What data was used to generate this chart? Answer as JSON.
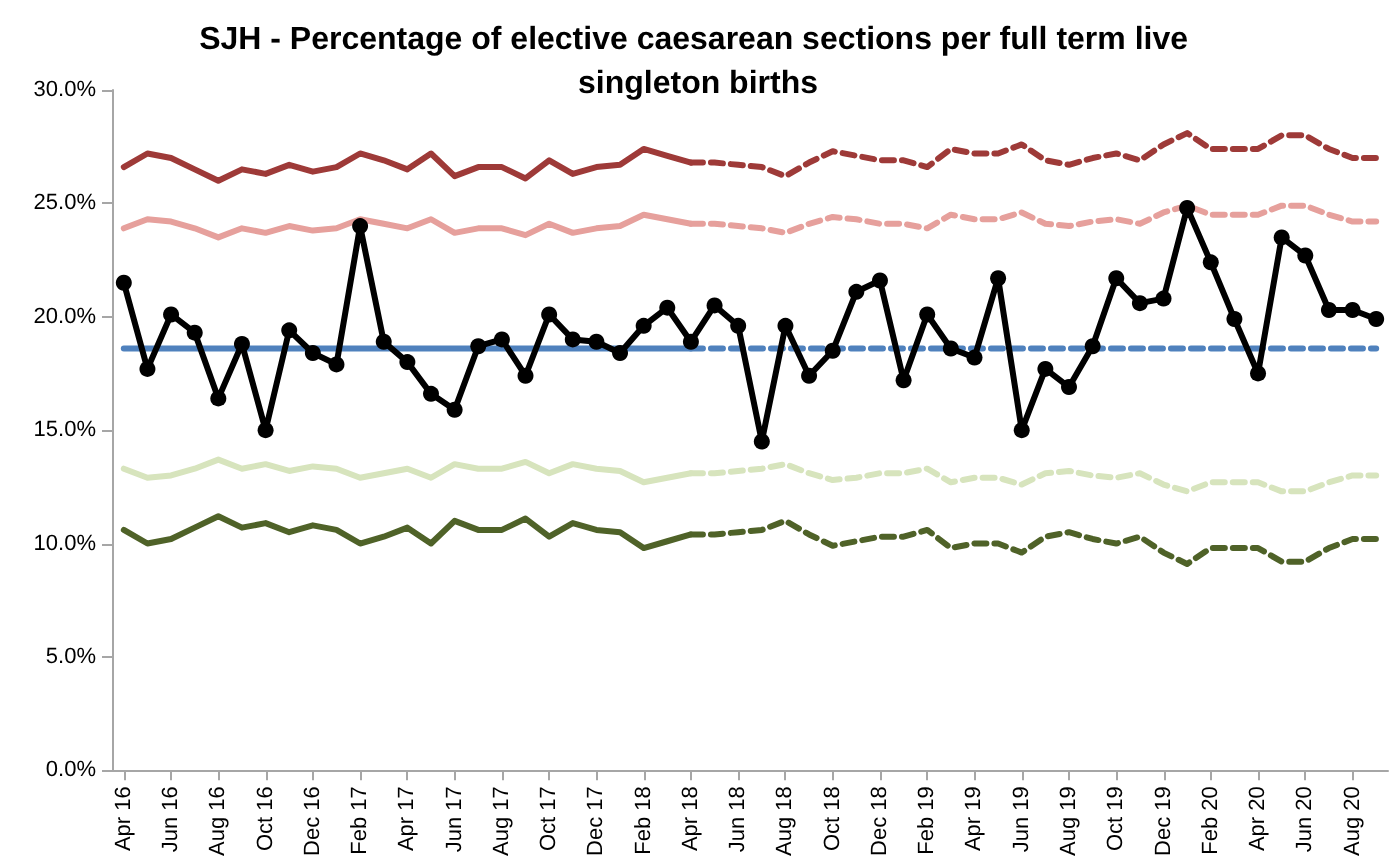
{
  "chart_data": {
    "type": "line",
    "title": "SJH - Percentage of elective caesarean sections per full term live singleton births",
    "categories": [
      "Apr 16",
      null,
      "Jun 16",
      null,
      "Aug 16",
      null,
      "Oct 16",
      null,
      "Dec 16",
      null,
      "Feb 17",
      null,
      "Apr 17",
      null,
      "Jun 17",
      null,
      "Aug 17",
      null,
      "Oct 17",
      null,
      "Dec 17",
      null,
      "Feb 18",
      null,
      "Apr 18",
      null,
      "Jun 18",
      null,
      "Aug 18",
      null,
      "Oct 18",
      null,
      "Dec 18",
      null,
      "Feb 19",
      null,
      "Apr 19",
      null,
      "Jun 19",
      null,
      "Aug 19",
      null,
      "Oct 19",
      null,
      "Dec 19",
      null,
      "Feb 20",
      null,
      "Apr 20",
      null,
      "Jun 20",
      null,
      "Aug 20",
      null
    ],
    "ylim": [
      0,
      30
    ],
    "yticks": [
      {
        "value": 0,
        "label": "0.0%"
      },
      {
        "value": 5,
        "label": "5.0%"
      },
      {
        "value": 10,
        "label": "10.0%"
      },
      {
        "value": 15,
        "label": "15.0%"
      },
      {
        "value": 20,
        "label": "20.0%"
      },
      {
        "value": 25,
        "label": "25.0%"
      },
      {
        "value": 30,
        "label": "30.0%"
      }
    ],
    "grid": false,
    "series": [
      {
        "color": "#9e3a38",
        "line_style": "solid",
        "marker": "none",
        "values": [
          26.6,
          27.2,
          27.0,
          26.5,
          26.0,
          26.5,
          26.3,
          26.7,
          26.4,
          26.6,
          27.2,
          26.9,
          26.5,
          27.2,
          26.2,
          26.6,
          26.6,
          26.1,
          26.9,
          26.3,
          26.6,
          26.7,
          27.4,
          27.1,
          26.8,
          null,
          null,
          null,
          null,
          null,
          null,
          null,
          null,
          null,
          null,
          null,
          null,
          null,
          null,
          null,
          null,
          null,
          null,
          null,
          null,
          null,
          null,
          null,
          null,
          null,
          null,
          null,
          null,
          null
        ]
      },
      {
        "color": "#9e3a38",
        "line_style": "dashed",
        "marker": "none",
        "values": [
          null,
          null,
          null,
          null,
          null,
          null,
          null,
          null,
          null,
          null,
          null,
          null,
          null,
          null,
          null,
          null,
          null,
          null,
          null,
          null,
          null,
          null,
          null,
          null,
          26.8,
          26.8,
          26.7,
          26.6,
          26.2,
          26.8,
          27.3,
          27.1,
          26.9,
          26.9,
          26.6,
          27.4,
          27.2,
          27.2,
          27.6,
          26.9,
          26.7,
          27.0,
          27.2,
          26.9,
          27.6,
          28.1,
          27.4,
          27.4,
          27.4,
          28.0,
          28.0,
          27.4,
          27.0,
          27.0
        ]
      },
      {
        "color": "#e6a09c",
        "line_style": "solid",
        "marker": "none",
        "values": [
          23.9,
          24.3,
          24.2,
          23.9,
          23.5,
          23.9,
          23.7,
          24.0,
          23.8,
          23.9,
          24.3,
          24.1,
          23.9,
          24.3,
          23.7,
          23.9,
          23.9,
          23.6,
          24.1,
          23.7,
          23.9,
          24.0,
          24.5,
          24.3,
          24.1,
          null,
          null,
          null,
          null,
          null,
          null,
          null,
          null,
          null,
          null,
          null,
          null,
          null,
          null,
          null,
          null,
          null,
          null,
          null,
          null,
          null,
          null,
          null,
          null,
          null,
          null,
          null,
          null,
          null
        ]
      },
      {
        "color": "#e6a09c",
        "line_style": "dashed",
        "marker": "none",
        "values": [
          null,
          null,
          null,
          null,
          null,
          null,
          null,
          null,
          null,
          null,
          null,
          null,
          null,
          null,
          null,
          null,
          null,
          null,
          null,
          null,
          null,
          null,
          null,
          null,
          24.1,
          24.1,
          24.0,
          23.9,
          23.7,
          24.1,
          24.4,
          24.3,
          24.1,
          24.1,
          23.9,
          24.5,
          24.3,
          24.3,
          24.6,
          24.1,
          24.0,
          24.2,
          24.3,
          24.1,
          24.6,
          24.9,
          24.5,
          24.5,
          24.5,
          24.9,
          24.9,
          24.5,
          24.2,
          24.2
        ]
      },
      {
        "color": "#d7e4bd",
        "line_style": "solid",
        "marker": "none",
        "values": [
          13.3,
          12.9,
          13.0,
          13.3,
          13.7,
          13.3,
          13.5,
          13.2,
          13.4,
          13.3,
          12.9,
          13.1,
          13.3,
          12.9,
          13.5,
          13.3,
          13.3,
          13.6,
          13.1,
          13.5,
          13.3,
          13.2,
          12.7,
          12.9,
          13.1,
          null,
          null,
          null,
          null,
          null,
          null,
          null,
          null,
          null,
          null,
          null,
          null,
          null,
          null,
          null,
          null,
          null,
          null,
          null,
          null,
          null,
          null,
          null,
          null,
          null,
          null,
          null,
          null,
          null
        ]
      },
      {
        "color": "#d7e4bd",
        "line_style": "dashed",
        "marker": "none",
        "values": [
          null,
          null,
          null,
          null,
          null,
          null,
          null,
          null,
          null,
          null,
          null,
          null,
          null,
          null,
          null,
          null,
          null,
          null,
          null,
          null,
          null,
          null,
          null,
          null,
          13.1,
          13.1,
          13.2,
          13.3,
          13.5,
          13.1,
          12.8,
          12.9,
          13.1,
          13.1,
          13.3,
          12.7,
          12.9,
          12.9,
          12.6,
          13.1,
          13.2,
          13.0,
          12.9,
          13.1,
          12.6,
          12.3,
          12.7,
          12.7,
          12.7,
          12.3,
          12.3,
          12.7,
          13.0,
          13.0
        ]
      },
      {
        "color": "#4f6228",
        "line_style": "solid",
        "marker": "none",
        "values": [
          10.6,
          10.0,
          10.2,
          10.7,
          11.2,
          10.7,
          10.9,
          10.5,
          10.8,
          10.6,
          10.0,
          10.3,
          10.7,
          10.0,
          11.0,
          10.6,
          10.6,
          11.1,
          10.3,
          10.9,
          10.6,
          10.5,
          9.8,
          10.1,
          10.4,
          null,
          null,
          null,
          null,
          null,
          null,
          null,
          null,
          null,
          null,
          null,
          null,
          null,
          null,
          null,
          null,
          null,
          null,
          null,
          null,
          null,
          null,
          null,
          null,
          null,
          null,
          null,
          null,
          null
        ]
      },
      {
        "color": "#4f6228",
        "line_style": "dashed",
        "marker": "none",
        "values": [
          null,
          null,
          null,
          null,
          null,
          null,
          null,
          null,
          null,
          null,
          null,
          null,
          null,
          null,
          null,
          null,
          null,
          null,
          null,
          null,
          null,
          null,
          null,
          null,
          10.4,
          10.4,
          10.5,
          10.6,
          11.0,
          10.4,
          9.9,
          10.1,
          10.3,
          10.3,
          10.6,
          9.8,
          10.0,
          10.0,
          9.6,
          10.3,
          10.5,
          10.2,
          10.0,
          10.3,
          9.6,
          9.1,
          9.8,
          9.8,
          9.8,
          9.2,
          9.2,
          9.8,
          10.2,
          10.2
        ]
      },
      {
        "color": "#4f81bd",
        "line_style": "solid",
        "marker": "none",
        "values": [
          18.6,
          18.6,
          18.6,
          18.6,
          18.6,
          18.6,
          18.6,
          18.6,
          18.6,
          18.6,
          18.6,
          18.6,
          18.6,
          18.6,
          18.6,
          18.6,
          18.6,
          18.6,
          18.6,
          18.6,
          18.6,
          18.6,
          18.6,
          18.6,
          18.6,
          null,
          null,
          null,
          null,
          null,
          null,
          null,
          null,
          null,
          null,
          null,
          null,
          null,
          null,
          null,
          null,
          null,
          null,
          null,
          null,
          null,
          null,
          null,
          null,
          null,
          null,
          null,
          null,
          null
        ]
      },
      {
        "color": "#4f81bd",
        "line_style": "dashed",
        "marker": "none",
        "values": [
          null,
          null,
          null,
          null,
          null,
          null,
          null,
          null,
          null,
          null,
          null,
          null,
          null,
          null,
          null,
          null,
          null,
          null,
          null,
          null,
          null,
          null,
          null,
          null,
          18.6,
          18.6,
          18.6,
          18.6,
          18.6,
          18.6,
          18.6,
          18.6,
          18.6,
          18.6,
          18.6,
          18.6,
          18.6,
          18.6,
          18.6,
          18.6,
          18.6,
          18.6,
          18.6,
          18.6,
          18.6,
          18.6,
          18.6,
          18.6,
          18.6,
          18.6,
          18.6,
          18.6,
          18.6,
          18.6
        ]
      },
      {
        "color": "#000000",
        "line_style": "solid",
        "marker": "circle",
        "values": [
          21.5,
          17.7,
          20.1,
          19.3,
          16.4,
          18.8,
          15.0,
          19.4,
          18.4,
          17.9,
          24.0,
          18.9,
          18.0,
          16.6,
          15.9,
          18.7,
          19.0,
          17.4,
          20.1,
          19.0,
          18.9,
          18.4,
          19.6,
          20.4,
          18.9,
          20.5,
          19.6,
          14.5,
          19.6,
          17.4,
          18.5,
          21.1,
          21.6,
          17.2,
          20.1,
          18.6,
          18.2,
          21.7,
          15.0,
          17.7,
          16.9,
          18.7,
          21.7,
          20.6,
          20.8,
          24.8,
          22.4,
          19.9,
          17.5,
          23.5,
          22.7,
          20.3,
          20.3,
          19.9
        ]
      }
    ]
  }
}
